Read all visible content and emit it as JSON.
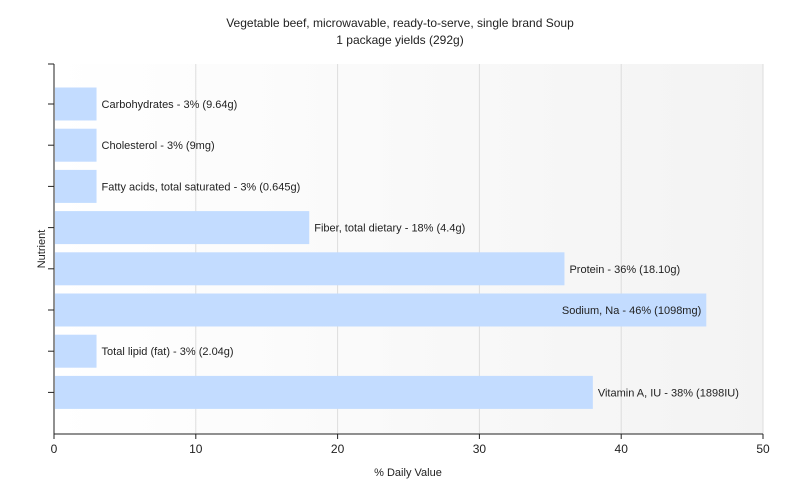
{
  "chart_data": {
    "type": "bar",
    "orientation": "horizontal",
    "title": "Vegetable beef, microwavable, ready-to-serve, single brand Soup",
    "subtitle": "1 package yields (292g)",
    "xlabel": "% Daily Value",
    "ylabel": "Nutrient",
    "xlim": [
      0,
      50
    ],
    "xticks": [
      "0",
      "10",
      "20",
      "30",
      "40",
      "50"
    ],
    "grid": true,
    "legend": "none",
    "bar_color": "#c3dcff",
    "categories": [
      "Carbohydrates",
      "Cholesterol",
      "Fatty acids, total saturated",
      "Fiber, total dietary",
      "Protein",
      "Sodium, Na",
      "Total lipid (fat)",
      "Vitamin A, IU"
    ],
    "values": [
      3,
      3,
      3,
      18,
      36,
      46,
      3,
      38
    ],
    "labels": [
      "Carbohydrates - 3% (9.64g)",
      "Cholesterol - 3% (9mg)",
      "Fatty acids, total saturated - 3% (0.645g)",
      "Fiber, total dietary - 18% (4.4g)",
      "Protein - 36% (18.10g)",
      "Sodium, Na - 46% (1098mg)",
      "Total lipid (fat) - 3% (2.04g)",
      "Vitamin A, IU - 38% (1898IU)"
    ]
  }
}
